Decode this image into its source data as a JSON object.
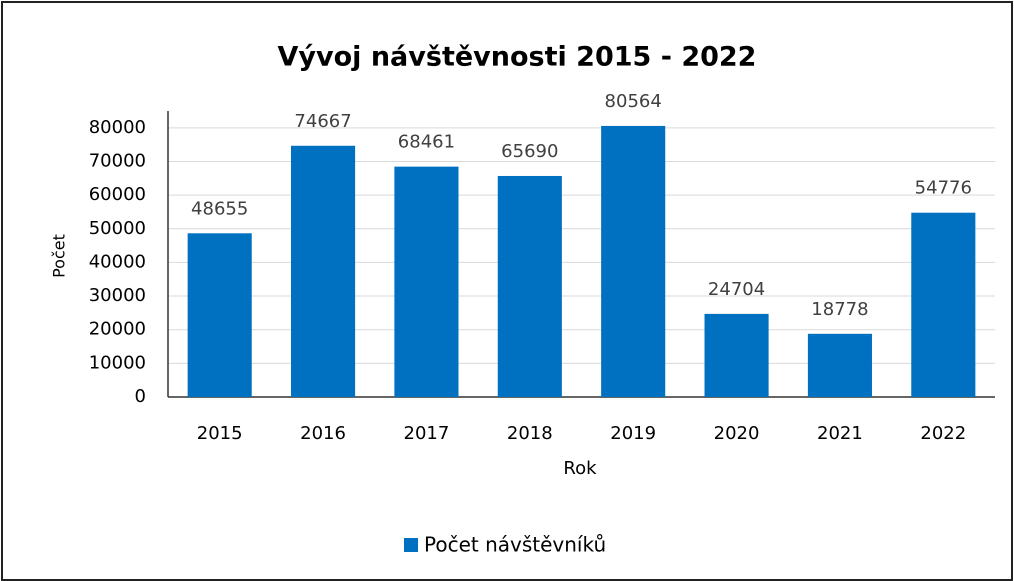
{
  "chart_data": {
    "type": "bar",
    "title": "Vývoj návštěvnosti 2015 - 2022",
    "x_label": "Rok",
    "y_label": "Počet",
    "categories": [
      "2015",
      "2016",
      "2017",
      "2018",
      "2019",
      "2020",
      "2021",
      "2022"
    ],
    "series": [
      {
        "name": "Počet návštěvníků",
        "color": "#0070c0",
        "values": [
          48655,
          74667,
          68461,
          65690,
          80564,
          24704,
          18778,
          54776
        ]
      }
    ],
    "ylim": [
      0,
      85000
    ],
    "yticks": [
      0,
      10000,
      20000,
      30000,
      40000,
      50000,
      60000,
      70000,
      80000
    ],
    "grid": true,
    "legend": "bottom"
  }
}
